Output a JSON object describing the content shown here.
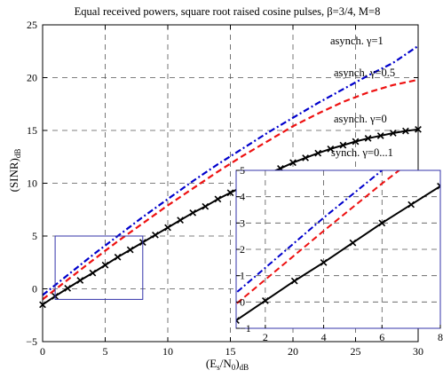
{
  "chart_data": {
    "type": "line",
    "title": "Equal received powers, square root raised cosine pulses, β=3/4, M=8",
    "xlabel": "(E_s/N_0)_dB",
    "ylabel": "(SINR)_dB",
    "xlim": [
      0,
      30
    ],
    "ylim": [
      -5,
      25
    ],
    "xticks": [
      0,
      5,
      10,
      15,
      20,
      25,
      30
    ],
    "yticks": [
      -5,
      0,
      5,
      10,
      15,
      20,
      25
    ],
    "grid": true,
    "series": [
      {
        "name": "asynch. γ=1",
        "color": "#0000cc",
        "linestyle": "dash-dot",
        "x": [
          0,
          2,
          4,
          6,
          8,
          10,
          12,
          14,
          16,
          18,
          20,
          22,
          24,
          26,
          28,
          30
        ],
        "y": [
          -0.6,
          1.3,
          3.2,
          5.0,
          6.8,
          8.5,
          10.2,
          11.8,
          13.3,
          14.8,
          16.2,
          17.6,
          18.9,
          20.2,
          21.4,
          23.0
        ]
      },
      {
        "name": "asynch. γ=0.5",
        "color": "#ee1111",
        "linestyle": "dashed",
        "x": [
          0,
          2,
          4,
          6,
          8,
          10,
          12,
          14,
          16,
          18,
          20,
          22,
          24,
          26,
          28,
          30
        ],
        "y": [
          -1.0,
          0.85,
          2.7,
          4.5,
          6.2,
          7.9,
          9.5,
          11.1,
          12.6,
          14.0,
          15.4,
          16.6,
          17.7,
          18.6,
          19.3,
          19.8
        ]
      },
      {
        "name": "asynch. γ=0",
        "color": "#000000",
        "linestyle": "solid",
        "marker": "x",
        "x": [
          0,
          1,
          2,
          3,
          4,
          5,
          6,
          7,
          8,
          9,
          10,
          11,
          12,
          13,
          14,
          15,
          16,
          17,
          18,
          19,
          20,
          21,
          22,
          23,
          24,
          25,
          26,
          27,
          28,
          29,
          30
        ],
        "y": [
          -1.5,
          -0.7,
          0.05,
          0.8,
          1.5,
          2.25,
          3.0,
          3.7,
          4.4,
          5.1,
          5.8,
          6.5,
          7.2,
          7.8,
          8.5,
          9.1,
          9.7,
          10.3,
          10.9,
          11.4,
          11.95,
          12.4,
          12.85,
          13.25,
          13.6,
          13.95,
          14.25,
          14.5,
          14.75,
          14.95,
          15.1
        ]
      }
    ],
    "annotations": [
      "asynch. γ=1",
      "asynch. γ=0.5",
      "asynch. γ=0",
      "synch. γ=0...1"
    ],
    "inset": {
      "xlim": [
        1,
        8
      ],
      "ylim": [
        -1,
        5
      ],
      "xticks": [
        2,
        4,
        6,
        8
      ],
      "yticks": [
        -1,
        0,
        1,
        2,
        3,
        4,
        5
      ],
      "grid": true
    }
  }
}
